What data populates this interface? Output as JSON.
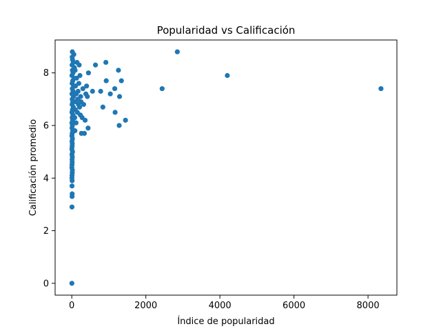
{
  "chart_data": {
    "type": "scatter",
    "title": "Popularidad vs Calificación",
    "xlabel": "Índice de popularidad",
    "ylabel": "Calificación promedio",
    "xlim": [
      -450,
      8780
    ],
    "ylim": [
      -0.45,
      9.25
    ],
    "x_ticks": [
      0,
      2000,
      4000,
      6000,
      8000
    ],
    "y_ticks": [
      0,
      2,
      4,
      6,
      8
    ],
    "x_tick_labels": [
      "0",
      "2000",
      "4000",
      "6000",
      "8000"
    ],
    "y_tick_labels": [
      "0",
      "2",
      "4",
      "6",
      "8"
    ],
    "grid": false,
    "marker_color": "#1f77b4",
    "points": [
      [
        2,
        0.0
      ],
      [
        5,
        2.9
      ],
      [
        8,
        3.3
      ],
      [
        10,
        3.4
      ],
      [
        6,
        3.7
      ],
      [
        9,
        3.9
      ],
      [
        4,
        4.0
      ],
      [
        7,
        4.1
      ],
      [
        12,
        4.2
      ],
      [
        15,
        4.3
      ],
      [
        3,
        4.4
      ],
      [
        6,
        4.5
      ],
      [
        11,
        4.6
      ],
      [
        8,
        4.7
      ],
      [
        14,
        4.8
      ],
      [
        5,
        4.9
      ],
      [
        20,
        5.0
      ],
      [
        2,
        5.1
      ],
      [
        9,
        5.2
      ],
      [
        13,
        5.3
      ],
      [
        6,
        5.4
      ],
      [
        18,
        5.5
      ],
      [
        4,
        5.6
      ],
      [
        10,
        5.7
      ],
      [
        25,
        5.8
      ],
      [
        7,
        5.9
      ],
      [
        15,
        6.0
      ],
      [
        3,
        6.1
      ],
      [
        22,
        6.2
      ],
      [
        11,
        6.3
      ],
      [
        30,
        6.4
      ],
      [
        5,
        6.5
      ],
      [
        17,
        6.6
      ],
      [
        40,
        6.7
      ],
      [
        8,
        6.8
      ],
      [
        28,
        6.9
      ],
      [
        12,
        7.0
      ],
      [
        45,
        7.1
      ],
      [
        6,
        7.2
      ],
      [
        35,
        7.3
      ],
      [
        14,
        7.4
      ],
      [
        50,
        7.5
      ],
      [
        9,
        7.6
      ],
      [
        25,
        7.7
      ],
      [
        60,
        7.8
      ],
      [
        4,
        7.9
      ],
      [
        33,
        8.0
      ],
      [
        16,
        8.1
      ],
      [
        70,
        8.2
      ],
      [
        7,
        8.3
      ],
      [
        40,
        8.4
      ],
      [
        20,
        8.5
      ],
      [
        10,
        8.6
      ],
      [
        55,
        8.7
      ],
      [
        15,
        8.8
      ],
      [
        80,
        6.3
      ],
      [
        95,
        6.6
      ],
      [
        110,
        6.9
      ],
      [
        120,
        7.2
      ],
      [
        100,
        7.5
      ],
      [
        130,
        7.8
      ],
      [
        90,
        8.1
      ],
      [
        140,
        8.4
      ],
      [
        85,
        5.8
      ],
      [
        115,
        6.1
      ],
      [
        150,
        6.5
      ],
      [
        160,
        7.0
      ],
      [
        170,
        7.3
      ],
      [
        180,
        6.8
      ],
      [
        190,
        7.6
      ],
      [
        200,
        8.3
      ],
      [
        210,
        6.7
      ],
      [
        220,
        7.9
      ],
      [
        230,
        6.4
      ],
      [
        240,
        7.1
      ],
      [
        250,
        6.9
      ],
      [
        260,
        5.7
      ],
      [
        280,
        6.3
      ],
      [
        300,
        7.4
      ],
      [
        320,
        6.8
      ],
      [
        340,
        5.7
      ],
      [
        360,
        6.2
      ],
      [
        380,
        7.2
      ],
      [
        400,
        7.5
      ],
      [
        420,
        7.1
      ],
      [
        440,
        5.9
      ],
      [
        450,
        8.0
      ],
      [
        560,
        7.3
      ],
      [
        640,
        8.3
      ],
      [
        780,
        7.3
      ],
      [
        840,
        6.7
      ],
      [
        920,
        8.4
      ],
      [
        930,
        7.7
      ],
      [
        1040,
        7.2
      ],
      [
        1160,
        7.4
      ],
      [
        1170,
        6.5
      ],
      [
        1260,
        8.1
      ],
      [
        1280,
        6.0
      ],
      [
        1290,
        7.1
      ],
      [
        1340,
        7.7
      ],
      [
        1450,
        6.2
      ],
      [
        2440,
        7.4
      ],
      [
        2850,
        8.8
      ],
      [
        4200,
        7.9
      ],
      [
        8350,
        7.4
      ]
    ]
  }
}
